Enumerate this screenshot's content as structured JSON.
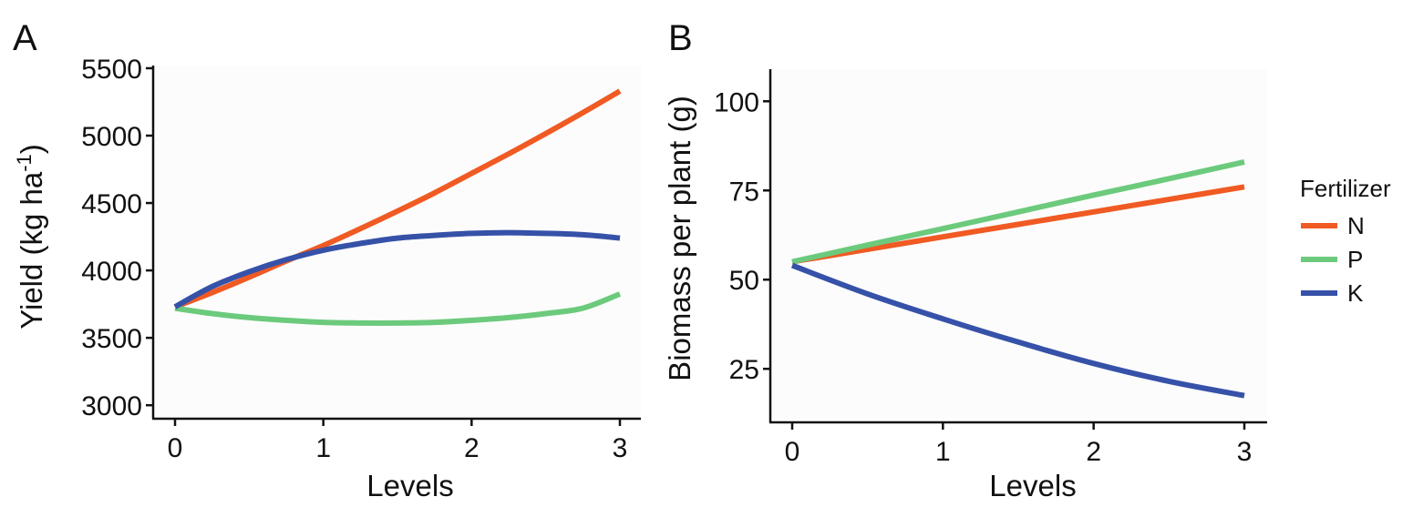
{
  "figure": {
    "legend": {
      "title": "Fertilizer",
      "items": [
        {
          "label": "N",
          "color": "#F05A23"
        },
        {
          "label": "P",
          "color": "#6CCA7C"
        },
        {
          "label": "K",
          "color": "#3651A8"
        }
      ]
    }
  },
  "chart_data": [
    {
      "type": "line",
      "panel": "A",
      "title": "",
      "xlabel": "Levels",
      "ylabel": "Yield (kg ha-1)",
      "ylabel_parts": {
        "main": "Yield (kg ha",
        "superscript": "-1",
        "close": ")"
      },
      "xlim": [
        0,
        3
      ],
      "ylim": [
        2900,
        5520
      ],
      "xticks": [
        0,
        1,
        2,
        3
      ],
      "yticks": [
        3000,
        3500,
        4000,
        4500,
        5000,
        5500
      ],
      "grid": false,
      "background": "#FCFCFC",
      "x": [
        0,
        0.25,
        0.5,
        0.75,
        1,
        1.25,
        1.5,
        1.75,
        2,
        2.25,
        2.5,
        2.75,
        3
      ],
      "series": [
        {
          "name": "N",
          "color": "#F05A23",
          "values": [
            3730,
            3835,
            3950,
            4070,
            4185,
            4310,
            4440,
            4575,
            4720,
            4865,
            5015,
            5170,
            5330
          ]
        },
        {
          "name": "P",
          "color": "#6CCA7C",
          "values": [
            3720,
            3680,
            3650,
            3630,
            3615,
            3610,
            3610,
            3615,
            3630,
            3650,
            3680,
            3720,
            3825
          ]
        },
        {
          "name": "K",
          "color": "#3651A8",
          "values": [
            3730,
            3880,
            3990,
            4080,
            4150,
            4200,
            4240,
            4260,
            4275,
            4280,
            4275,
            4265,
            4240
          ]
        }
      ]
    },
    {
      "type": "line",
      "panel": "B",
      "title": "",
      "xlabel": "Levels",
      "ylabel": "Biomass per plant (g)",
      "xlim": [
        0,
        3
      ],
      "ylim": [
        10,
        109
      ],
      "xticks": [
        0,
        1,
        2,
        3
      ],
      "yticks": [
        25,
        50,
        75,
        100
      ],
      "grid": false,
      "background": "#FCFCFC",
      "legend_position": "right",
      "x": [
        0,
        0.5,
        1,
        1.5,
        2,
        2.5,
        3
      ],
      "series": [
        {
          "name": "N",
          "color": "#F05A23",
          "values": [
            55,
            58.5,
            62,
            65.5,
            69,
            72.5,
            76
          ]
        },
        {
          "name": "P",
          "color": "#6CCA7C",
          "values": [
            55,
            59.7,
            64.3,
            69,
            73.7,
            78.3,
            83
          ]
        },
        {
          "name": "K",
          "color": "#3651A8",
          "values": [
            54,
            46,
            39,
            32.5,
            26.5,
            21.5,
            17.5
          ]
        }
      ]
    }
  ]
}
